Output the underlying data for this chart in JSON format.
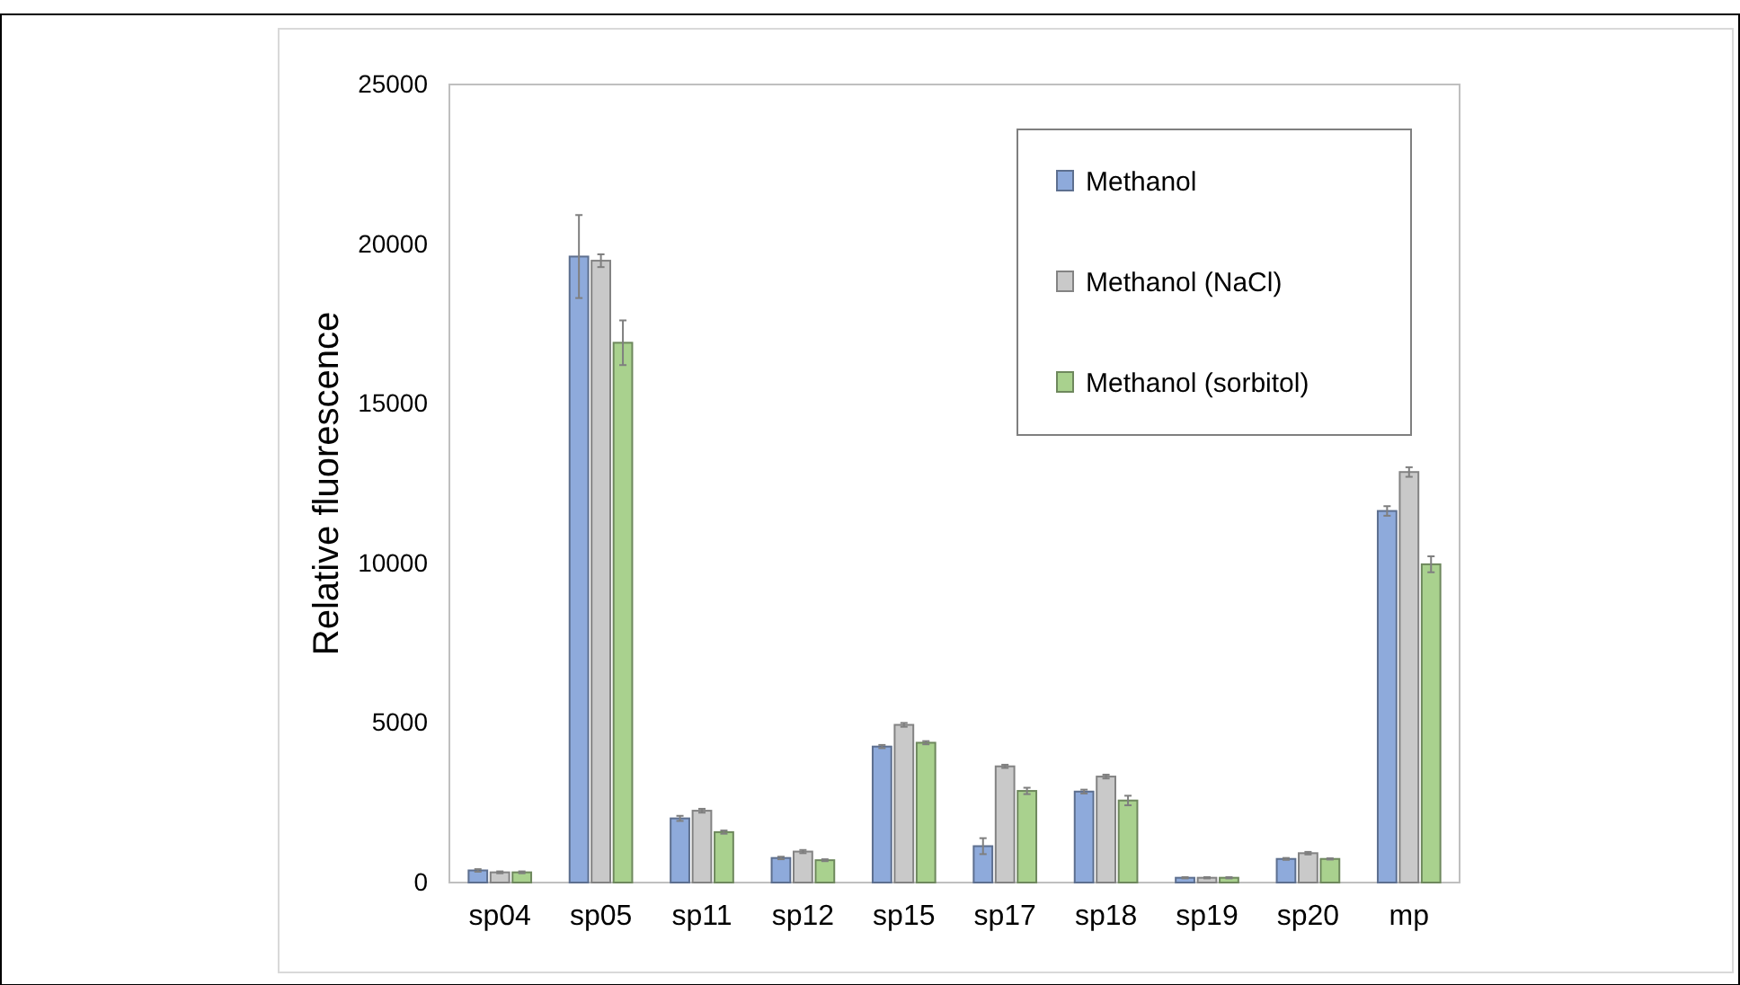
{
  "chart_data": {
    "type": "bar",
    "ylabel": "Relative fluorescence",
    "categories": [
      "sp04",
      "sp05",
      "sp11",
      "sp12",
      "sp15",
      "sp17",
      "sp18",
      "sp19",
      "sp20",
      "mp"
    ],
    "series": [
      {
        "name": "Methanol",
        "color": "#8eaadb",
        "values": [
          380,
          19610,
          2010,
          770,
          4260,
          1140,
          2850,
          150,
          740,
          11640
        ],
        "errors": [
          40,
          1300,
          80,
          40,
          50,
          250,
          60,
          20,
          30,
          150
        ]
      },
      {
        "name": "Methanol (NaCl)",
        "color": "#c9c9c9",
        "values": [
          320,
          19480,
          2250,
          970,
          4940,
          3640,
          3320,
          150,
          920,
          12860
        ],
        "errors": [
          30,
          200,
          60,
          50,
          60,
          50,
          60,
          20,
          40,
          150
        ]
      },
      {
        "name": "Methanol (sorbitol)",
        "color": "#a9d18e",
        "values": [
          320,
          16910,
          1580,
          700,
          4380,
          2870,
          2570,
          150,
          740,
          9970
        ],
        "errors": [
          30,
          700,
          50,
          30,
          50,
          100,
          150,
          20,
          20,
          250
        ]
      }
    ],
    "ylim": [
      0,
      25000
    ],
    "yticks": [
      0,
      5000,
      10000,
      15000,
      20000,
      25000
    ],
    "grid": false,
    "legend": "top right"
  }
}
